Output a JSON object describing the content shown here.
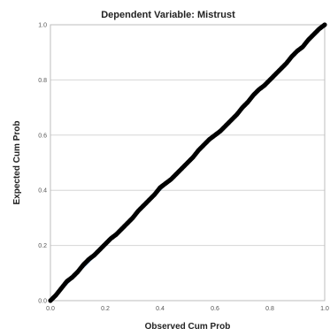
{
  "chart_data": {
    "type": "scatter",
    "title": "Dependent Variable: Mistrust",
    "xlabel": "Observed Cum Prob",
    "ylabel": "Expected Cum Prob",
    "xlim": [
      0.0,
      1.0
    ],
    "ylim": [
      0.0,
      1.0
    ],
    "x_ticks": [
      "0.0",
      "0.2",
      "0.4",
      "0.6",
      "0.8",
      "1.0"
    ],
    "y_ticks": [
      "0.0",
      "0.2",
      "0.4",
      "0.6",
      "0.8",
      "1.0"
    ],
    "grid": true,
    "reference_line": {
      "from": [
        0.0,
        0.0
      ],
      "to": [
        1.0,
        1.0
      ],
      "color": "#4a7fb5"
    },
    "point_color": "#000000",
    "series": [
      {
        "x": [
          0.0,
          0.02,
          0.04,
          0.06,
          0.08,
          0.1,
          0.12,
          0.14,
          0.16,
          0.18,
          0.2,
          0.22,
          0.24,
          0.26,
          0.28,
          0.3,
          0.32,
          0.34,
          0.36,
          0.38,
          0.4,
          0.42,
          0.44,
          0.46,
          0.48,
          0.5,
          0.52,
          0.54,
          0.56,
          0.58,
          0.6,
          0.62,
          0.64,
          0.66,
          0.68,
          0.7,
          0.72,
          0.74,
          0.76,
          0.78,
          0.8,
          0.82,
          0.84,
          0.86,
          0.88,
          0.9,
          0.92,
          0.94,
          0.96,
          0.98,
          1.0
        ],
        "y": [
          0.0,
          0.02,
          0.045,
          0.07,
          0.085,
          0.105,
          0.13,
          0.15,
          0.165,
          0.185,
          0.205,
          0.225,
          0.24,
          0.26,
          0.28,
          0.3,
          0.325,
          0.345,
          0.365,
          0.385,
          0.41,
          0.425,
          0.44,
          0.46,
          0.48,
          0.5,
          0.52,
          0.545,
          0.565,
          0.585,
          0.6,
          0.615,
          0.635,
          0.655,
          0.675,
          0.7,
          0.72,
          0.745,
          0.765,
          0.78,
          0.8,
          0.82,
          0.84,
          0.86,
          0.885,
          0.905,
          0.92,
          0.945,
          0.965,
          0.985,
          1.0
        ]
      }
    ]
  }
}
